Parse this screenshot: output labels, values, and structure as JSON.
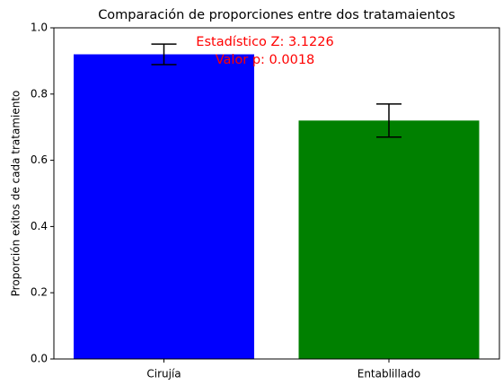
{
  "chart_data": {
    "type": "bar",
    "title": "Comparación de proporciones entre dos tratamaientos",
    "y_label": "Proporción exitos de cada tratamiento",
    "categories": [
      "Cirujía",
      "Entablillado"
    ],
    "values": [
      0.92,
      0.72
    ],
    "errors": [
      0.031,
      0.05
    ],
    "colors": [
      "#0000ff",
      "#008000"
    ],
    "annotations": [
      "Estadístico Z: 3.1226",
      "Valor p: 0.0018"
    ],
    "annotation_color": "#ff0000",
    "ylim": [
      0,
      1.0
    ],
    "yticks": [
      {
        "value": 0,
        "label": "0.0"
      },
      0.2,
      0.4,
      0.6,
      0.8,
      {
        "value": 1.0,
        "label": "1.0"
      }
    ],
    "grid": false
  }
}
